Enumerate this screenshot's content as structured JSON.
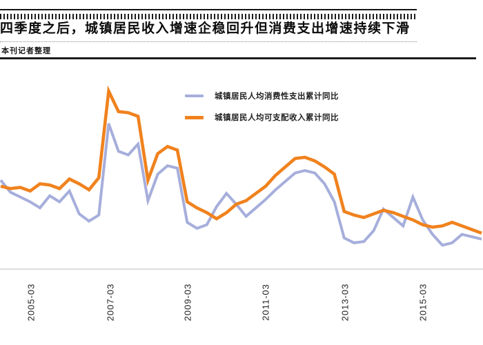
{
  "header": {
    "title": "四季度之后，城镇居民收入增速企稳回升但消费支出增速持续下滑",
    "source": "本刊记者整理"
  },
  "chart_data": {
    "type": "line",
    "title": "四季度之后，城镇居民收入增速企稳回升但消费支出增速持续下滑",
    "unit": "%",
    "grid": false,
    "legend_position": "top-center",
    "xlabel": "",
    "ylabel": "",
    "ylim": [
      5,
      21
    ],
    "x": [
      "2004-06",
      "2004-09",
      "2004-12",
      "2005-03",
      "2005-06",
      "2005-09",
      "2005-12",
      "2006-03",
      "2006-06",
      "2006-09",
      "2006-12",
      "2007-03",
      "2007-06",
      "2007-09",
      "2007-12",
      "2008-03",
      "2008-06",
      "2008-09",
      "2008-12",
      "2009-03",
      "2009-06",
      "2009-09",
      "2009-12",
      "2010-03",
      "2010-06",
      "2010-09",
      "2010-12",
      "2011-03",
      "2011-06",
      "2011-09",
      "2011-12",
      "2012-03",
      "2012-06",
      "2012-09",
      "2012-12",
      "2013-03",
      "2013-06",
      "2013-09",
      "2013-12",
      "2014-03",
      "2014-06",
      "2014-09",
      "2014-12",
      "2015-03",
      "2015-06",
      "2015-09",
      "2015-12",
      "2016-03",
      "2016-06",
      "2016-09"
    ],
    "xticks": [
      "2005-03",
      "2007-03",
      "2009-03",
      "2011-03",
      "2013-03",
      "2015-03"
    ],
    "series": [
      {
        "name": "城镇居民人均消费性支出累计同比",
        "color": "#A6AEDB",
        "values": [
          12.1,
          11.1,
          10.7,
          10.3,
          9.8,
          10.8,
          10.3,
          11.2,
          9.3,
          8.7,
          9.2,
          16.8,
          14.5,
          14.2,
          15.1,
          10.4,
          12.6,
          13.3,
          13.1,
          8.6,
          8.1,
          8.4,
          9.9,
          11.0,
          10.1,
          9.1,
          9.8,
          10.5,
          11.3,
          12.0,
          12.7,
          12.9,
          12.7,
          11.8,
          10.3,
          7.3,
          6.9,
          7.0,
          7.9,
          9.7,
          9.0,
          8.3,
          10.7,
          8.8,
          7.6,
          6.7,
          6.9,
          7.6,
          7.4,
          7.2
        ]
      },
      {
        "name": "城镇居民人均可支配收入累计同比",
        "color": "#F0821E",
        "values": [
          11.6,
          11.4,
          11.5,
          11.2,
          11.8,
          11.7,
          11.4,
          12.2,
          11.8,
          11.3,
          12.3,
          19.5,
          17.8,
          17.7,
          17.4,
          12.1,
          14.3,
          14.9,
          14.6,
          10.3,
          9.8,
          9.4,
          8.9,
          9.4,
          10.1,
          10.4,
          11.0,
          11.6,
          12.5,
          13.2,
          13.9,
          14.0,
          13.7,
          13.2,
          12.6,
          9.5,
          9.2,
          9.0,
          9.3,
          9.6,
          9.4,
          9.1,
          8.8,
          8.4,
          8.2,
          8.3,
          8.6,
          8.3,
          8.0,
          7.7
        ]
      }
    ]
  }
}
